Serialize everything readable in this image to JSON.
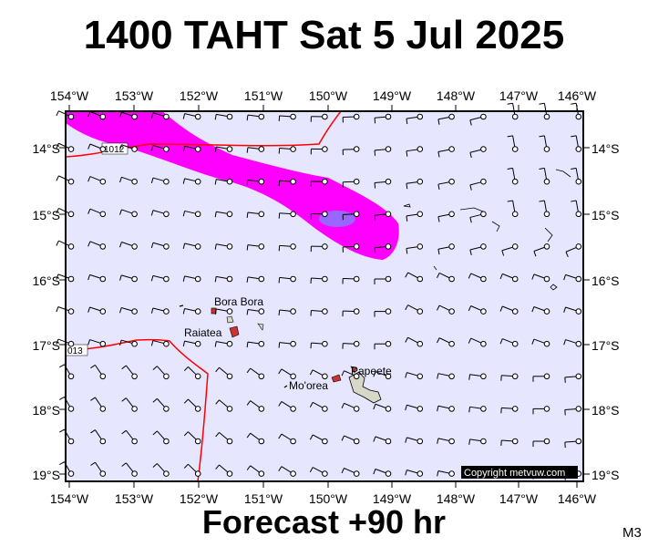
{
  "header": {
    "title": "1400 TAHT Sat 5 Jul 2025"
  },
  "footer": {
    "forecast": "Forecast +90 hr",
    "model": "M3"
  },
  "axes": {
    "lon_labels": [
      "154°W",
      "153°W",
      "152°W",
      "151°W",
      "150°W",
      "149°W",
      "148°W",
      "147°W",
      "146°W"
    ],
    "lat_labels": [
      "14°S",
      "15°S",
      "16°S",
      "17°S",
      "18°S",
      "19°S"
    ]
  },
  "places": {
    "bora_bora": "Bora Bora",
    "raiatea": "Raiatea",
    "moorea": "Mo'orea",
    "papeete": "Papeete"
  },
  "isobars": {
    "label_1012": "1012",
    "label_1013": "013"
  },
  "credit": {
    "copyright": "Copyright metvuw.com"
  },
  "colors": {
    "ocean": "#e6e6ff",
    "precip_light": "#ff00ff",
    "precip_heavy": "#9966ff",
    "isobar": "#ff0000",
    "land": "#d8d8c8"
  }
}
